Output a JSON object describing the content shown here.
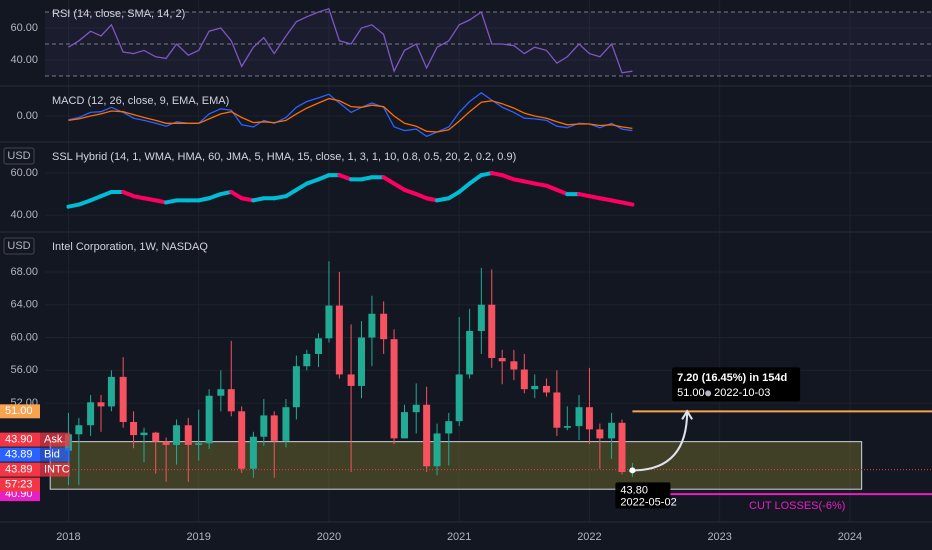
{
  "chart_data": [
    {
      "type": "line",
      "title": "RSI (14, close, SMA, 14, 2)",
      "x": [
        2018,
        2018.08,
        2018.17,
        2018.25,
        2018.33,
        2018.42,
        2018.5,
        2018.58,
        2018.67,
        2018.75,
        2018.83,
        2018.92,
        2019,
        2019.08,
        2019.17,
        2019.25,
        2019.33,
        2019.42,
        2019.5,
        2019.58,
        2019.67,
        2019.75,
        2019.83,
        2019.92,
        2020,
        2020.08,
        2020.17,
        2020.25,
        2020.33,
        2020.42,
        2020.5,
        2020.58,
        2020.67,
        2020.75,
        2020.83,
        2020.92,
        2021,
        2021.08,
        2021.17,
        2021.25,
        2021.33,
        2021.42,
        2021.5,
        2021.58,
        2021.67,
        2021.75,
        2021.83,
        2021.92,
        2022,
        2022.08,
        2022.17,
        2022.25,
        2022.33
      ],
      "series": [
        {
          "color": "#7e57c2",
          "values": [
            48,
            52,
            58,
            55,
            62,
            45,
            44,
            46,
            42,
            41,
            50,
            43,
            46,
            58,
            60,
            52,
            36,
            48,
            54,
            44,
            55,
            64,
            67,
            70,
            72,
            52,
            50,
            60,
            62,
            56,
            33,
            46,
            50,
            35,
            48,
            52,
            62,
            65,
            70,
            50,
            50,
            49,
            44,
            48,
            46,
            38,
            42,
            50,
            44,
            42,
            50,
            32,
            33
          ]
        }
      ],
      "bands": [
        70,
        50,
        30
      ],
      "ylim": [
        24.4,
        77.5
      ],
      "yticks": [
        {
          "value": 60,
          "label": "60.00"
        },
        {
          "value": 40,
          "label": "40.00"
        }
      ]
    },
    {
      "type": "line",
      "title": "MACD (12, 26, close, 9, EMA, EMA)",
      "x": [
        2018,
        2018.08,
        2018.17,
        2018.25,
        2018.33,
        2018.42,
        2018.5,
        2018.58,
        2018.67,
        2018.75,
        2018.83,
        2018.92,
        2019,
        2019.08,
        2019.17,
        2019.25,
        2019.33,
        2019.42,
        2019.5,
        2019.58,
        2019.67,
        2019.75,
        2019.83,
        2019.92,
        2020,
        2020.08,
        2020.17,
        2020.25,
        2020.33,
        2020.42,
        2020.5,
        2020.58,
        2020.67,
        2020.75,
        2020.83,
        2020.92,
        2021,
        2021.08,
        2021.17,
        2021.25,
        2021.33,
        2021.42,
        2021.5,
        2021.58,
        2021.67,
        2021.75,
        2021.83,
        2021.92,
        2022,
        2022.08,
        2022.17,
        2022.25,
        2022.33
      ],
      "series": [
        {
          "color": "#2962ff",
          "values": [
            -0.5,
            -0.2,
            0.5,
            0.6,
            1.2,
            0.5,
            -0.3,
            -0.6,
            -1.0,
            -1.4,
            -0.8,
            -1.0,
            -1.0,
            0.3,
            1.0,
            0.8,
            -1.2,
            -1.5,
            -0.6,
            -1.0,
            -0.2,
            1.2,
            2.0,
            2.5,
            3.0,
            1.8,
            0.5,
            1.2,
            1.8,
            1.2,
            -1.5,
            -2.0,
            -1.8,
            -2.8,
            -2.2,
            -1.5,
            0.5,
            2.0,
            3.2,
            2.2,
            1.2,
            0.5,
            -0.3,
            -0.4,
            -0.6,
            -1.4,
            -1.6,
            -1.0,
            -1.1,
            -1.6,
            -1.0,
            -1.8,
            -2.0
          ]
        },
        {
          "color": "#ff6d00",
          "values": [
            -0.6,
            -0.4,
            0.0,
            0.3,
            0.7,
            0.6,
            0.2,
            -0.2,
            -0.6,
            -1.0,
            -1.0,
            -1.0,
            -1.0,
            -0.4,
            0.3,
            0.6,
            -0.2,
            -0.9,
            -0.8,
            -0.9,
            -0.6,
            0.3,
            1.1,
            1.8,
            2.4,
            2.1,
            1.3,
            1.2,
            1.5,
            1.3,
            0.0,
            -1.0,
            -1.4,
            -2.1,
            -2.2,
            -1.9,
            -0.7,
            0.6,
            1.9,
            2.1,
            1.7,
            1.1,
            0.4,
            0.0,
            -0.3,
            -0.8,
            -1.2,
            -1.1,
            -1.1,
            -1.3,
            -1.2,
            -1.5,
            -1.7
          ]
        }
      ],
      "ylim": [
        -3.3,
        4.0
      ],
      "yticks": [
        {
          "value": 0,
          "label": "0.00"
        }
      ]
    },
    {
      "type": "line",
      "title": "SSL Hybrid (14, 1, WMA, HMA, 60, JMA, 5, HMA, 15, close, 1, 3, 1, 10, 0.8, 0.5, 20, 2, 0.2, 0.9)",
      "unit": "USD",
      "x": [
        2018,
        2018.08,
        2018.17,
        2018.25,
        2018.33,
        2018.42,
        2018.5,
        2018.58,
        2018.67,
        2018.75,
        2018.83,
        2018.92,
        2019,
        2019.08,
        2019.17,
        2019.25,
        2019.33,
        2019.42,
        2019.5,
        2019.58,
        2019.67,
        2019.75,
        2019.83,
        2019.92,
        2020,
        2020.08,
        2020.17,
        2020.25,
        2020.33,
        2020.42,
        2020.5,
        2020.58,
        2020.67,
        2020.75,
        2020.83,
        2020.92,
        2021,
        2021.08,
        2021.17,
        2021.25,
        2021.33,
        2021.42,
        2021.5,
        2021.58,
        2021.67,
        2021.75,
        2021.83,
        2021.92,
        2022,
        2022.08,
        2022.17,
        2022.25,
        2022.33
      ],
      "series": [
        {
          "color": "#00bcd4",
          "down_color": "#ff0062",
          "values": [
            44,
            45,
            47,
            49,
            51,
            51,
            49,
            48,
            47,
            46,
            47,
            47,
            47,
            48,
            50,
            51,
            48,
            47,
            48,
            48,
            49,
            52,
            55,
            57,
            59,
            59,
            57,
            57,
            58,
            58,
            55,
            52,
            50,
            48,
            47,
            48,
            51,
            55,
            59,
            60,
            59,
            57,
            56,
            55,
            54,
            52,
            50,
            50,
            49,
            48,
            47,
            46,
            45
          ]
        }
      ],
      "ylim": [
        32.9,
        74.3
      ],
      "yticks": [
        {
          "value": 60,
          "label": "60.00"
        },
        {
          "value": 40,
          "label": "40.00"
        }
      ]
    },
    {
      "type": "candlestick",
      "title": "Intel Corporation, 1W, NASDAQ",
      "unit": "USD",
      "x": [
        2018,
        2018.08,
        2018.17,
        2018.25,
        2018.33,
        2018.42,
        2018.5,
        2018.58,
        2018.67,
        2018.75,
        2018.83,
        2018.92,
        2019,
        2019.08,
        2019.17,
        2019.25,
        2019.33,
        2019.42,
        2019.5,
        2019.58,
        2019.67,
        2019.75,
        2019.83,
        2019.92,
        2020,
        2020.08,
        2020.17,
        2020.25,
        2020.33,
        2020.42,
        2020.5,
        2020.58,
        2020.67,
        2020.75,
        2020.83,
        2020.92,
        2021,
        2021.08,
        2021.17,
        2021.25,
        2021.33,
        2021.42,
        2021.5,
        2021.58,
        2021.67,
        2021.75,
        2021.83,
        2021.92,
        2022,
        2022.08,
        2022.17,
        2022.25,
        2022.33
      ],
      "open": [
        46.2,
        48.2,
        49.3,
        52.1,
        51.6,
        55.2,
        49.7,
        48.1,
        48.4,
        47.3,
        46.9,
        49.3,
        46.9,
        47.1,
        52.9,
        53.7,
        51.0,
        44.0,
        47.9,
        50.5,
        47.4,
        51.5,
        56.5,
        58.0,
        59.9,
        63.9,
        55.5,
        54.1,
        60.0,
        62.9,
        59.8,
        47.7,
        50.9,
        51.8,
        44.3,
        48.3,
        49.8,
        55.5,
        60.8,
        64.0,
        57.5,
        57.1,
        56.1,
        53.7,
        54.1,
        53.3,
        49.0,
        49.2,
        51.5,
        48.8,
        47.7,
        49.6,
        43.6
      ],
      "high": [
        50.8,
        50.2,
        53.0,
        53.0,
        56.0,
        57.6,
        51.0,
        49.0,
        48.5,
        47.8,
        50.0,
        50.2,
        51.2,
        53.7,
        56.0,
        59.6,
        51.6,
        48.5,
        52.5,
        51.0,
        52.5,
        57.8,
        58.5,
        60.5,
        69.3,
        68.0,
        61.6,
        62.0,
        65.1,
        64.4,
        61.0,
        51.8,
        54.4,
        54.0,
        49.5,
        50.8,
        62.5,
        63.5,
        68.5,
        68.3,
        58.5,
        58.5,
        58.0,
        55.5,
        55.0,
        56.0,
        51.6,
        53.0,
        56.3,
        49.5,
        50.8,
        50.0,
        44.7
      ],
      "low": [
        42.0,
        42.0,
        48.0,
        48.5,
        51.0,
        49.0,
        46.5,
        44.8,
        43.4,
        42.4,
        44.5,
        42.4,
        45.0,
        46.4,
        51.0,
        50.4,
        43.5,
        42.9,
        46.8,
        42.9,
        46.6,
        50.0,
        56.0,
        56.4,
        59.4,
        55.0,
        43.6,
        52.6,
        56.5,
        58.0,
        47.0,
        47.7,
        48.3,
        43.6,
        43.2,
        44.4,
        49.2,
        55.0,
        58.0,
        56.3,
        54.3,
        54.8,
        53.2,
        52.6,
        52.8,
        48.0,
        48.7,
        47.5,
        47.0,
        44.0,
        45.2,
        43.3,
        43.0
      ],
      "close": [
        48.2,
        49.3,
        52.1,
        51.6,
        55.2,
        49.7,
        48.1,
        48.4,
        47.3,
        46.9,
        49.3,
        46.9,
        47.1,
        52.9,
        53.7,
        51.0,
        44.0,
        47.9,
        50.5,
        47.4,
        51.5,
        56.5,
        58.0,
        59.9,
        63.9,
        55.5,
        54.1,
        60.0,
        62.9,
        59.8,
        47.7,
        50.9,
        51.8,
        44.3,
        48.3,
        49.8,
        55.5,
        60.8,
        64.0,
        57.5,
        57.1,
        56.1,
        53.7,
        54.1,
        53.3,
        49.0,
        49.2,
        51.5,
        48.8,
        47.7,
        49.6,
        43.6,
        43.8
      ],
      "up_color": "#22ab94",
      "down_color": "#f7525f",
      "xlim": [
        2017.82,
        2024.63
      ],
      "xticks": [
        2018,
        2019,
        2020,
        2021,
        2022,
        2023,
        2024
      ],
      "ylim": [
        37.5,
        72.75
      ],
      "yticks": [
        {
          "value": 68,
          "label": "68.00"
        },
        {
          "value": 64,
          "label": "64.00"
        },
        {
          "value": 60,
          "label": "60.00"
        },
        {
          "value": 56,
          "label": "56.00"
        },
        {
          "value": 52,
          "label": "52.00"
        }
      ],
      "zone": {
        "x": [
          2017.86,
          2024.09
        ],
        "y": [
          41.5,
          47.3
        ]
      },
      "levels": [
        {
          "value": 51,
          "label": "51.00",
          "color": "#f7a350",
          "x": 2022.33
        },
        {
          "value": 40.9,
          "label": "40.90",
          "color": "#e91ec5",
          "x": 2022.33,
          "text": "CUT LOSSES(-6%)"
        }
      ],
      "quotes": [
        {
          "value": 43.9,
          "label": "43.90",
          "tag": "Ask",
          "color": "#f23645"
        },
        {
          "value": 43.89,
          "label": "43.89",
          "tag": "Bid",
          "color": "#2962ff"
        },
        {
          "value": 43.89,
          "label": "43.89",
          "tag": "INTC",
          "color": "#f23645"
        }
      ],
      "countdown": "57:23",
      "projection": {
        "text": "7.20 (16.45%) in 154d",
        "to": {
          "x": 2022.75,
          "value": 51,
          "label": "51.00",
          "date": "2022-10-03"
        },
        "from": {
          "x": 2022.33,
          "value": 43.8,
          "label": "43.80",
          "date": "2022-05-02"
        }
      }
    }
  ]
}
